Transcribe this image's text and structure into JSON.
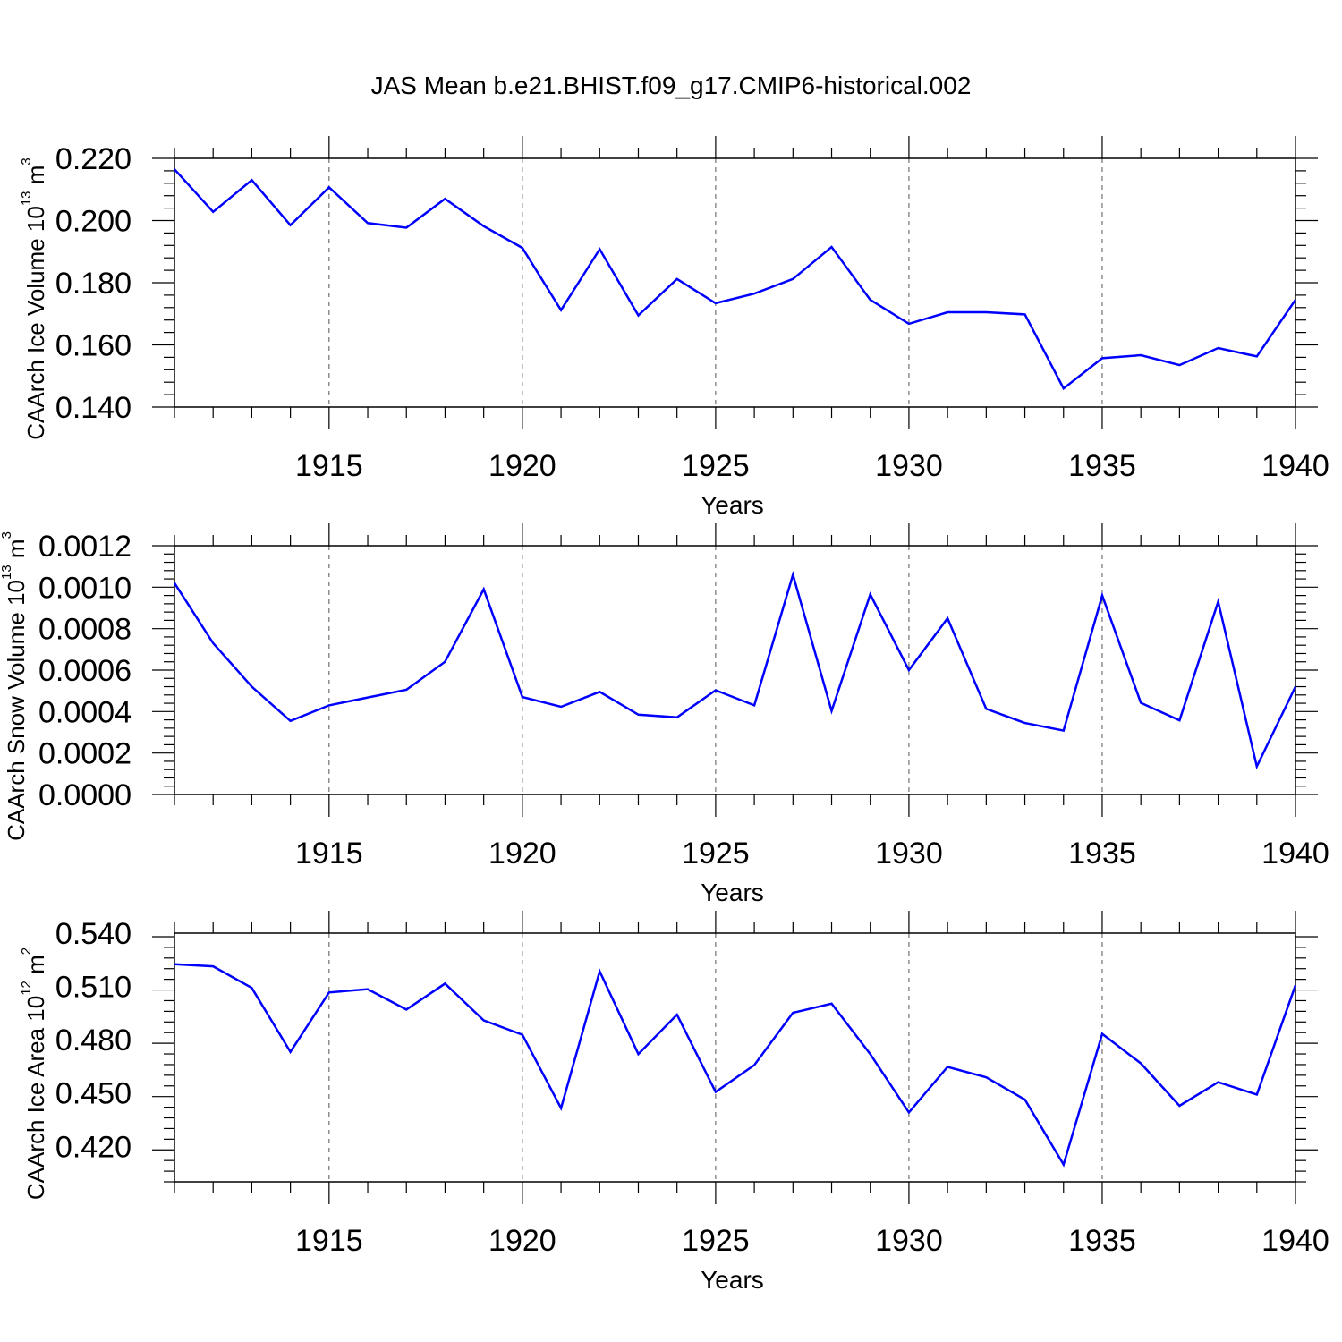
{
  "figure": {
    "title": "JAS Mean b.e21.BHIST.f09_g17.CMIP6-historical.002",
    "line_color": "#0000ff"
  },
  "chart_data": [
    {
      "type": "line",
      "title": "JAS Mean b.e21.BHIST.f09_g17.CMIP6-historical.002",
      "xlabel": "Years",
      "ylabel": {
        "prefix": "CAArch Ice Volume 10",
        "exp": "13",
        "unit": " m",
        "unit_exp": "3"
      },
      "ylim": [
        0.14,
        0.22
      ],
      "yticks": [
        "0.140",
        "0.160",
        "0.180",
        "0.200",
        "0.220"
      ],
      "ytick_values": [
        0.14,
        0.16,
        0.18,
        0.2,
        0.22
      ],
      "ytick_minor_step": 0.004,
      "xlim": [
        1911,
        1940
      ],
      "xticks": [
        "1915",
        "1920",
        "1925",
        "1930",
        "1935",
        "1940"
      ],
      "xtick_values": [
        1915,
        1920,
        1925,
        1930,
        1935,
        1940
      ],
      "grid": "vertical dashed at labeled years",
      "x": [
        1911,
        1912,
        1913,
        1914,
        1915,
        1916,
        1917,
        1918,
        1919,
        1920,
        1921,
        1922,
        1923,
        1924,
        1925,
        1926,
        1927,
        1928,
        1929,
        1930,
        1931,
        1932,
        1933,
        1934,
        1935,
        1936,
        1937,
        1938,
        1939,
        1940
      ],
      "series": [
        {
          "values": [
            0.2165,
            0.2028,
            0.213,
            0.1985,
            0.2107,
            0.1992,
            0.1977,
            0.207,
            0.1982,
            0.1912,
            0.1712,
            0.1908,
            0.1695,
            0.1812,
            0.1734,
            0.1765,
            0.1812,
            0.1915,
            0.1745,
            0.1668,
            0.1705,
            0.1705,
            0.1698,
            0.146,
            0.1557,
            0.1567,
            0.1535,
            0.159,
            0.1563,
            0.1745
          ]
        }
      ]
    },
    {
      "type": "line",
      "xlabel": "Years",
      "ylabel": {
        "prefix": "CAArch Snow Volume 10",
        "exp": "13",
        "unit": " m",
        "unit_exp": "3"
      },
      "ylim": [
        0.0,
        0.0012
      ],
      "yticks": [
        "0.0000",
        "0.0002",
        "0.0004",
        "0.0006",
        "0.0008",
        "0.0010",
        "0.0012"
      ],
      "ytick_values": [
        0.0,
        0.0002,
        0.0004,
        0.0006,
        0.0008,
        0.001,
        0.0012
      ],
      "ytick_minor_step": 4e-05,
      "xlim": [
        1911,
        1940
      ],
      "xticks": [
        "1915",
        "1920",
        "1925",
        "1930",
        "1935",
        "1940"
      ],
      "xtick_values": [
        1915,
        1920,
        1925,
        1930,
        1935,
        1940
      ],
      "grid": "vertical dashed at labeled years",
      "x": [
        1911,
        1912,
        1913,
        1914,
        1915,
        1916,
        1917,
        1918,
        1919,
        1920,
        1921,
        1922,
        1923,
        1924,
        1925,
        1926,
        1927,
        1928,
        1929,
        1930,
        1931,
        1932,
        1933,
        1934,
        1935,
        1936,
        1937,
        1938,
        1939,
        1940
      ],
      "series": [
        {
          "values": [
            0.00102,
            0.00073,
            0.00052,
            0.000355,
            0.00043,
            0.000468,
            0.000505,
            0.00064,
            0.00099,
            0.00047,
            0.000423,
            0.000495,
            0.000385,
            0.000372,
            0.000503,
            0.00043,
            0.00106,
            0.000403,
            0.000965,
            0.0006,
            0.00085,
            0.000413,
            0.000345,
            0.000308,
            0.00096,
            0.000442,
            0.000358,
            0.00093,
            0.000135,
            0.00052
          ]
        }
      ]
    },
    {
      "type": "line",
      "xlabel": "Years",
      "ylabel": {
        "prefix": "CAArch Ice Area 10",
        "exp": "12",
        "unit": " m",
        "unit_exp": "2"
      },
      "ylim": [
        0.4,
        0.54
      ],
      "yticks": [
        "0.420",
        "0.450",
        "0.480",
        "0.510",
        "0.540"
      ],
      "ytick_values": [
        0.42,
        0.45,
        0.48,
        0.51,
        0.54
      ],
      "ytick_minor_step": 0.006,
      "xlim": [
        1911,
        1940
      ],
      "xticks": [
        "1915",
        "1920",
        "1925",
        "1930",
        "1935",
        "1940"
      ],
      "xtick_values": [
        1915,
        1920,
        1925,
        1930,
        1935,
        1940
      ],
      "grid": "vertical dashed at labeled years",
      "x": [
        1911,
        1912,
        1913,
        1914,
        1915,
        1916,
        1917,
        1918,
        1919,
        1920,
        1921,
        1922,
        1923,
        1924,
        1925,
        1926,
        1927,
        1928,
        1929,
        1930,
        1931,
        1932,
        1933,
        1934,
        1935,
        1936,
        1937,
        1938,
        1939,
        1940
      ],
      "series": [
        {
          "values": [
            0.5225,
            0.5213,
            0.5092,
            0.4731,
            0.5066,
            0.5085,
            0.497,
            0.5116,
            0.4909,
            0.4828,
            0.4415,
            0.5185,
            0.4719,
            0.4941,
            0.4506,
            0.4657,
            0.4952,
            0.5003,
            0.4719,
            0.4391,
            0.4647,
            0.4588,
            0.4463,
            0.4097,
            0.4833,
            0.4667,
            0.4428,
            0.4561,
            0.4491,
            0.5107
          ]
        }
      ]
    }
  ]
}
